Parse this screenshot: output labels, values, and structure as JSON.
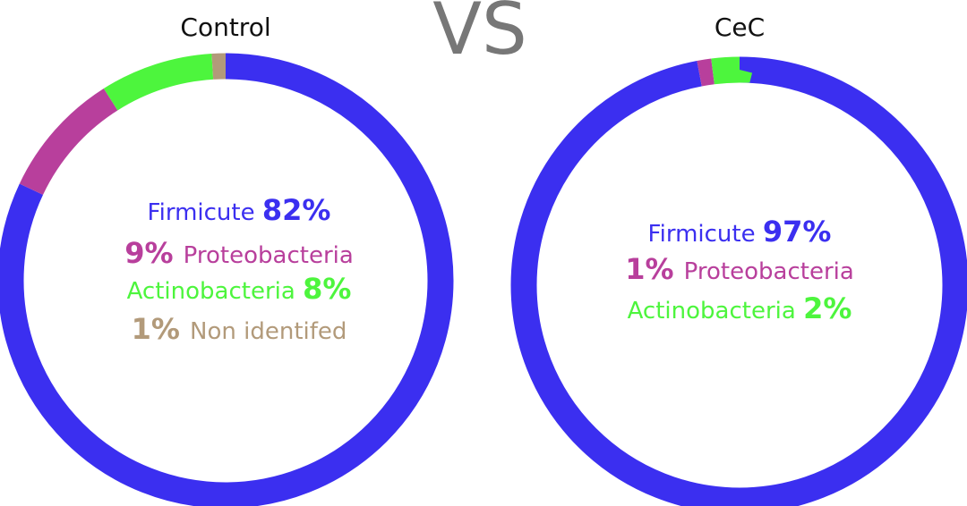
{
  "vs_label": "VS",
  "chart_data": [
    {
      "type": "pie",
      "variant": "donut",
      "title": "Control",
      "slices": [
        {
          "name": "Firmicute",
          "value": 82,
          "label": "82%",
          "color": "#3b2ff0"
        },
        {
          "name": "Proteobacteria",
          "value": 9,
          "label": "9%",
          "color": "#b83f9c"
        },
        {
          "name": "Actinobacteria",
          "value": 8,
          "label": "8%",
          "color": "#4df53d"
        },
        {
          "name": "Non identifed",
          "value": 1,
          "label": "1%",
          "color": "#b29a7a"
        }
      ]
    },
    {
      "type": "pie",
      "variant": "donut",
      "title": "CeC",
      "slices": [
        {
          "name": "Firmicute",
          "value": 97,
          "label": "97%",
          "color": "#3b2ff0"
        },
        {
          "name": "Proteobacteria",
          "value": 1,
          "label": "1%",
          "color": "#b83f9c"
        },
        {
          "name": "Actinobacteria",
          "value": 2,
          "label": "2%",
          "color": "#4df53d"
        }
      ]
    }
  ]
}
